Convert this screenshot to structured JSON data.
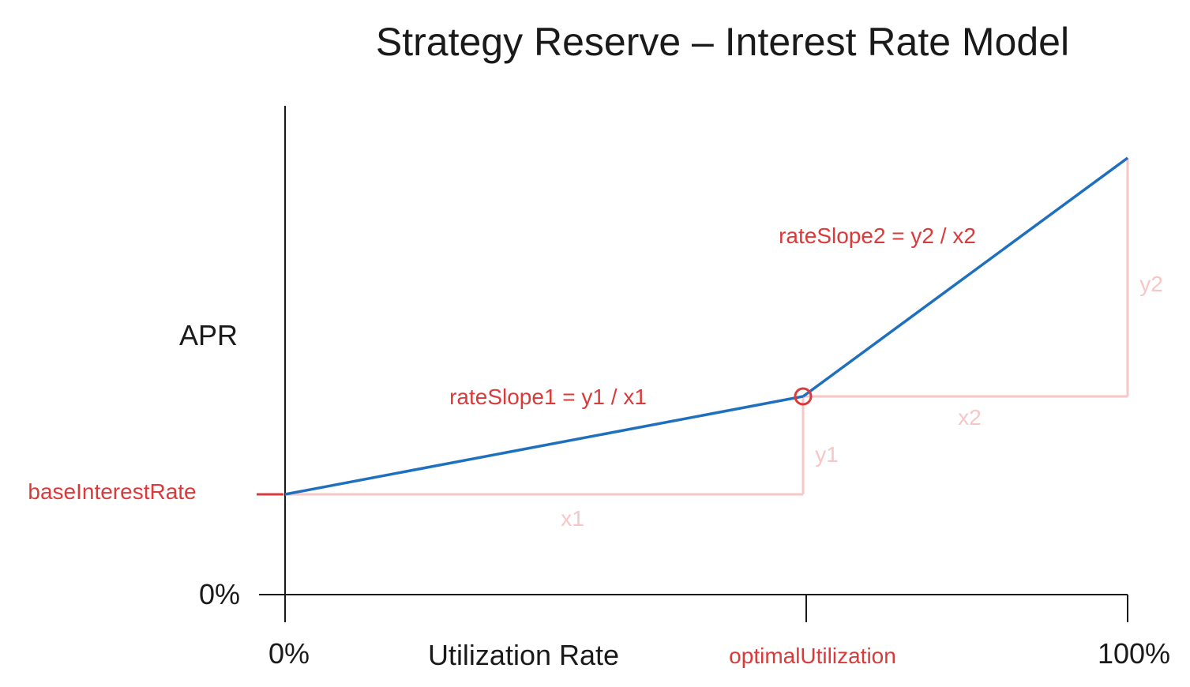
{
  "chart_data": {
    "type": "line",
    "title": "Strategy Reserve – Interest Rate Model",
    "xlabel": "Utilization Rate",
    "ylabel": "APR",
    "x_ticks": [
      "0%",
      "optimalUtilization",
      "100%"
    ],
    "y_ticks": [
      "0%"
    ],
    "y_marker_label": "baseInterestRate",
    "series": [
      {
        "x": [
          "0%",
          "optimalUtilization",
          "100%"
        ],
        "y": [
          "baseInterestRate",
          "baseInterestRate + y1",
          "baseInterestRate + y1 + y2"
        ]
      }
    ],
    "kink_point": "optimalUtilization",
    "annotations": {
      "slope1": "rateSlope1 = y1 / x1",
      "slope2": "rateSlope2 = y2 / x2",
      "x1": "x1",
      "y1": "y1",
      "x2": "x2",
      "y2": "y2"
    },
    "grid": false,
    "legend": "none"
  },
  "colors": {
    "line": "#1f6fbf",
    "annotation": "#d93a3a",
    "construction": "#f7c6c6",
    "axis": "#1a1a1a"
  }
}
